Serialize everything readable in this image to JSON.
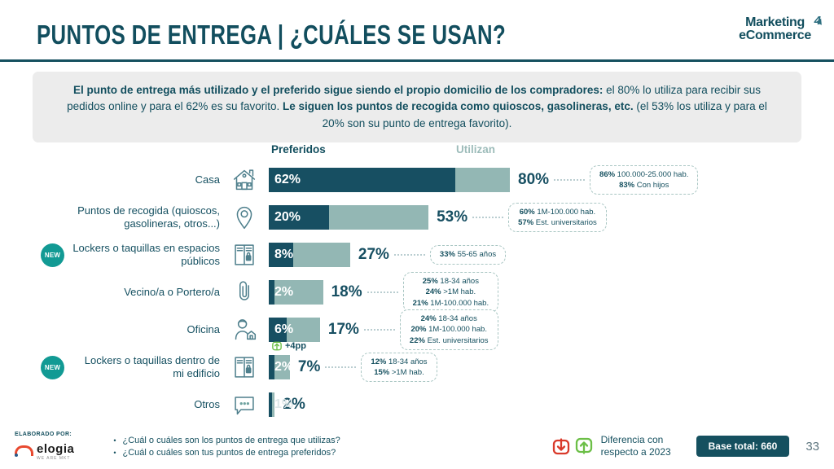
{
  "header": {
    "title": "PUNTOS DE ENTREGA | ¿CUÁLES SE USAN?",
    "brand_line1": "Marketing",
    "brand_line2": "eCommerce",
    "brand_glyph": "4"
  },
  "intro": {
    "bold1": "El punto de entrega más utilizado y el preferido sigue siendo el propio domicilio de los compradores:",
    "text1": " el 80% lo utiliza para recibir sus pedidos online y para el 62% es su favorito. ",
    "bold2": "Le siguen los puntos de recogida como quioscos, gasolineras, etc.",
    "text2": " (el 53% los utiliza y para el 20% son su punto de entrega favorito)."
  },
  "legend": {
    "preferidos": "Preferidos",
    "utilizan": "Utilizan"
  },
  "badges": {
    "new": "NEW"
  },
  "chart_data": {
    "type": "bar",
    "orientation": "horizontal",
    "xlim": [
      0,
      100
    ],
    "legend_position": "top",
    "categories": [
      "Casa",
      "Puntos de recogida (quioscos, gasolineras, otros...)",
      "Lockers o taquillas en espacios públicos",
      "Vecino/a o Portero/a",
      "Oficina",
      "Lockers o taquillas dentro de mi edificio",
      "Otros"
    ],
    "series": [
      {
        "name": "Preferidos",
        "values": [
          62,
          20,
          8,
          2,
          6,
          2,
          1
        ]
      },
      {
        "name": "Utilizan",
        "values": [
          80,
          53,
          27,
          18,
          17,
          7,
          2
        ]
      }
    ],
    "rows": [
      {
        "label": "Casa",
        "new": false,
        "icon": "house-icon",
        "preferidos": 62,
        "utilizan": 80,
        "annotation": [
          [
            "86%",
            "100.000-25.000 hab."
          ],
          [
            "83%",
            "Con hijos"
          ]
        ]
      },
      {
        "label": "Puntos de recogida (quioscos, gasolineras, otros...)",
        "new": false,
        "icon": "location-pin-icon",
        "preferidos": 20,
        "utilizan": 53,
        "annotation": [
          [
            "60%",
            "1M-100.000 hab."
          ],
          [
            "57%",
            "Est. universitarios"
          ]
        ]
      },
      {
        "label": "Lockers o taquillas en espacios públicos",
        "new": true,
        "icon": "lockers-icon",
        "preferidos": 8,
        "utilizan": 27,
        "annotation": [
          [
            "33%",
            "55-65 años"
          ]
        ]
      },
      {
        "label": "Vecino/a o Portero/a",
        "new": false,
        "icon": "paperclip-icon",
        "preferidos": 2,
        "utilizan": 18,
        "annotation": [
          [
            "25%",
            "18-34 años"
          ],
          [
            "24%",
            ">1M hab."
          ],
          [
            "21%",
            "1M-100.000 hab."
          ]
        ]
      },
      {
        "label": "Oficina",
        "new": false,
        "icon": "office-worker-icon",
        "preferidos": 6,
        "utilizan": 17,
        "annotation": [
          [
            "24%",
            "18-34 años"
          ],
          [
            "20%",
            "1M-100.000 hab."
          ],
          [
            "22%",
            "Est. universitarios"
          ]
        ],
        "delta": "+4pp"
      },
      {
        "label": "Lockers o taquillas dentro de mi edificio",
        "new": true,
        "icon": "lockers-icon",
        "preferidos": 2,
        "utilizan": 7,
        "annotation": [
          [
            "12%",
            "18-34 años"
          ],
          [
            "15%",
            ">1M hab."
          ]
        ]
      },
      {
        "label": "Otros",
        "new": false,
        "icon": "speech-bubble-icon",
        "preferidos": 1,
        "utilizan": 2,
        "annotation": []
      }
    ]
  },
  "footer": {
    "elaborado": "ELABORADO POR:",
    "logo_name": "elogia",
    "logo_tagline": "WE ARE MKT",
    "questions": [
      "¿Cuál o cuáles son los puntos de entrega que utilizas?",
      "¿Cuál o cuáles son tus puntos de entrega preferidos?"
    ],
    "diff_label": "Diferencia con respecto a 2023",
    "base_total": "Base total: 660",
    "page": "33"
  },
  "colors": {
    "dark_teal": "#174f62",
    "sage": "#93b7b4",
    "badge_teal": "#129a94",
    "green": "#6cbf47",
    "red": "#d93a2b",
    "intro_bg": "#ececec"
  }
}
